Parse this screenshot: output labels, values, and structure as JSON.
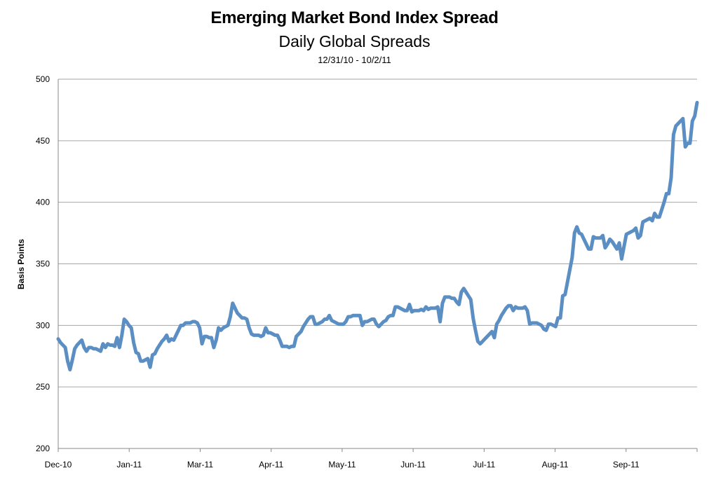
{
  "chart_data": {
    "type": "line",
    "title": "Emerging Market Bond Index Spread",
    "subtitle": "Daily Global Spreads",
    "date_range": "12/31/10 - 10/2/11",
    "xlabel": "",
    "ylabel": "Basis Points",
    "ylim": [
      200,
      500
    ],
    "yticks": [
      200,
      250,
      300,
      350,
      400,
      450,
      500
    ],
    "xtick_labels": [
      "Dec-10",
      "Jan-11",
      "Mar-11",
      "Apr-11",
      "May-11",
      "Jun-11",
      "Jul-11",
      "Aug-11",
      "Sep-11"
    ],
    "grid": true,
    "line_color": "#5b8fc3",
    "series": [
      {
        "name": "",
        "values": [
          289,
          286,
          284,
          282,
          271,
          264,
          272,
          281,
          284,
          286,
          288,
          282,
          279,
          282,
          282,
          281,
          281,
          280,
          279,
          285,
          282,
          285,
          284,
          284,
          283,
          290,
          282,
          292,
          305,
          303,
          300,
          298,
          286,
          278,
          277,
          271,
          271,
          272,
          273,
          266,
          276,
          277,
          281,
          284,
          287,
          289,
          292,
          287,
          289,
          288,
          292,
          296,
          300,
          300,
          302,
          302,
          302,
          303,
          303,
          302,
          298,
          285,
          291,
          291,
          290,
          290,
          282,
          288,
          298,
          296,
          298,
          299,
          300,
          307,
          318,
          314,
          310,
          308,
          306,
          306,
          305,
          298,
          293,
          292,
          292,
          292,
          291,
          292,
          298,
          294,
          294,
          293,
          292,
          292,
          288,
          283,
          283,
          283,
          282,
          283,
          283,
          291,
          293,
          295,
          299,
          302,
          305,
          307,
          307,
          301,
          301,
          302,
          303,
          305,
          305,
          308,
          304,
          303,
          302,
          301,
          301,
          301,
          303,
          307,
          307,
          308,
          308,
          308,
          308,
          300,
          303,
          303,
          304,
          305,
          305,
          301,
          299,
          301,
          303,
          304,
          307,
          308,
          308,
          315,
          315,
          314,
          313,
          312,
          312,
          317,
          311,
          312,
          312,
          312,
          313,
          312,
          315,
          313,
          314,
          314,
          314,
          315,
          303,
          318,
          323,
          323,
          323,
          322,
          322,
          319,
          317,
          327,
          330,
          327,
          324,
          321,
          306,
          296,
          287,
          285,
          287,
          289,
          291,
          293,
          295,
          290,
          301,
          304,
          308,
          311,
          314,
          316,
          316,
          312,
          315,
          314,
          314,
          314,
          315,
          312,
          301,
          302,
          302,
          302,
          301,
          300,
          297,
          296,
          301,
          301,
          300,
          299,
          306,
          306,
          324,
          325,
          335,
          345,
          355,
          375,
          380,
          375,
          374,
          370,
          366,
          362,
          362,
          372,
          371,
          371,
          371,
          373,
          363,
          366,
          370,
          368,
          365,
          362,
          367,
          354,
          364,
          374,
          375,
          376,
          377,
          379,
          371,
          373,
          384,
          385,
          386,
          387,
          385,
          391,
          388,
          388,
          394,
          400,
          407,
          407,
          420,
          455,
          462,
          464,
          466,
          468,
          445,
          448,
          448,
          466,
          470,
          481
        ]
      }
    ]
  }
}
